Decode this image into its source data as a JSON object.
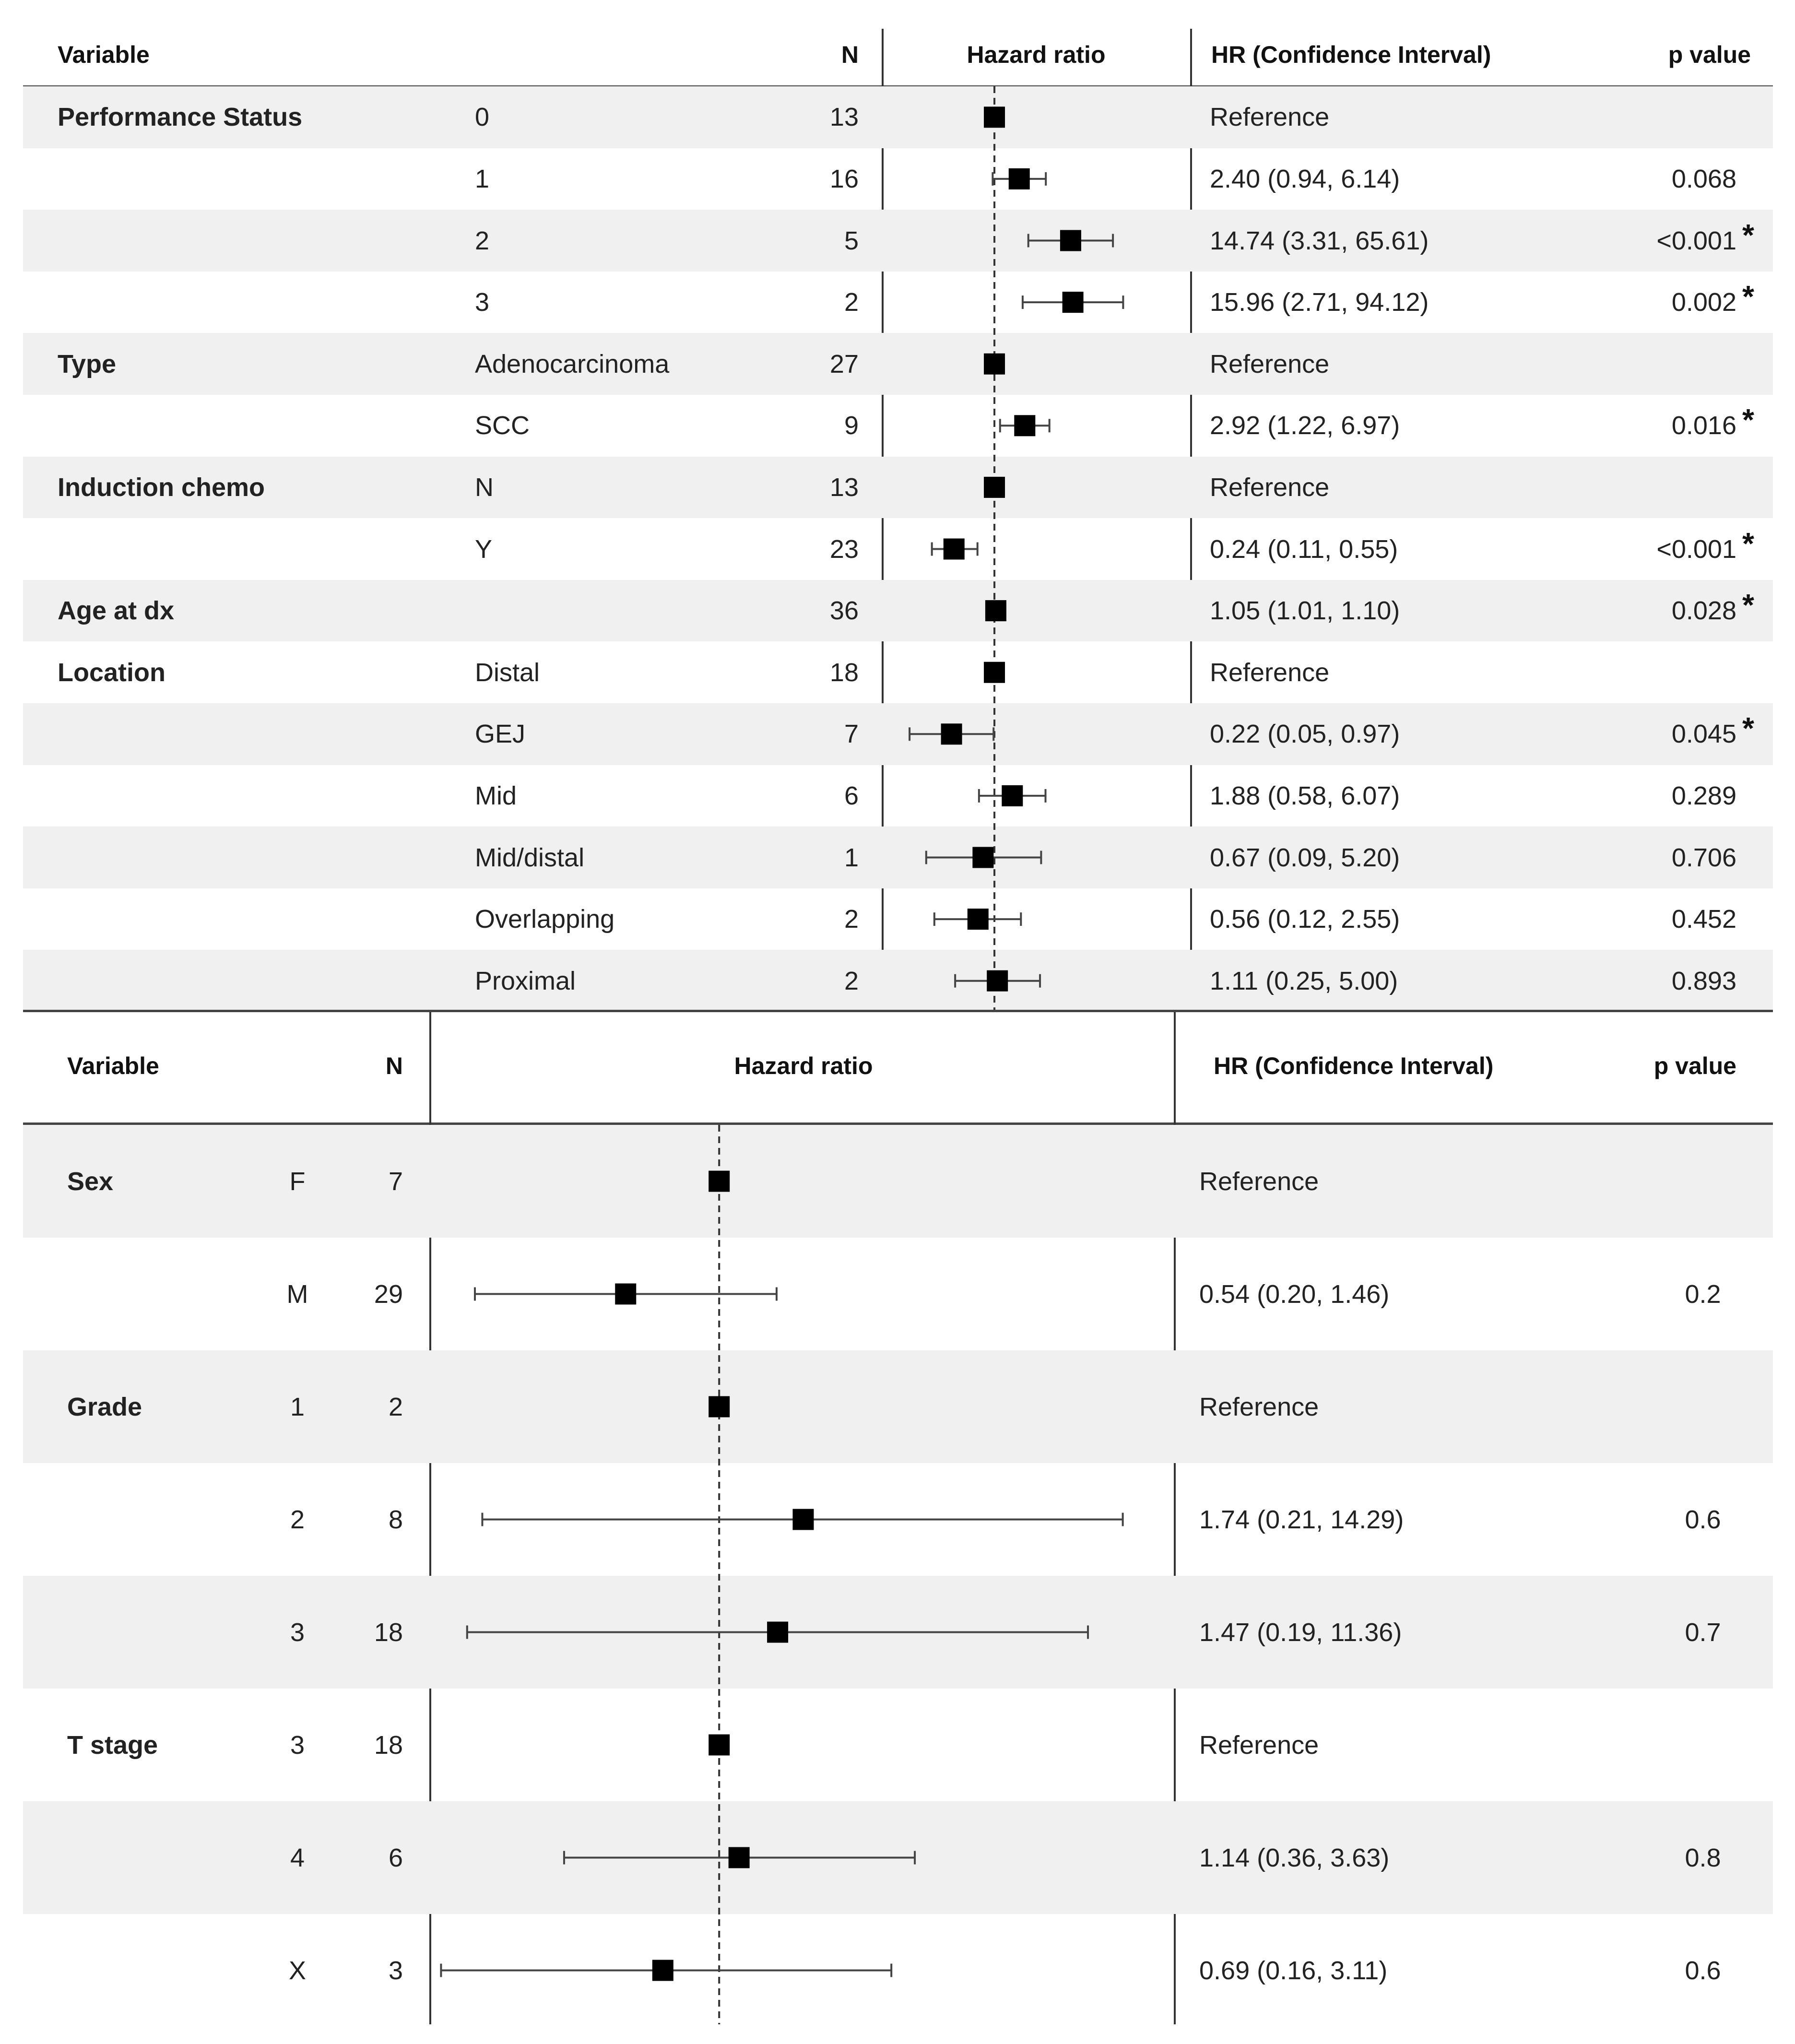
{
  "chart_data": [
    {
      "type": "forest",
      "headers": {
        "variable": "Variable",
        "n": "N",
        "plot": "Hazard ratio",
        "hr": "HR (Confidence Interval)",
        "p": "p value"
      },
      "xlim": [
        0.02,
        1000
      ],
      "scale": "log",
      "reference_line": 1,
      "rows": [
        {
          "variable": "Performance   Status",
          "level": "0",
          "n": "13",
          "hr": 1,
          "hr_text": "Reference",
          "p": "",
          "sig": false
        },
        {
          "variable": "",
          "level": "1",
          "n": "16",
          "hr": 2.4,
          "lo": 0.94,
          "hi": 6.14,
          "hr_text": "2.40 (0.94, 6.14)",
          "p": "0.068",
          "sig": false
        },
        {
          "variable": "",
          "level": "2",
          "n": "5",
          "hr": 14.74,
          "lo": 3.31,
          "hi": 65.61,
          "hr_text": "14.74 (3.31, 65.61)",
          "p": "<0.001",
          "sig": true
        },
        {
          "variable": "",
          "level": "3",
          "n": "2",
          "hr": 15.96,
          "lo": 2.71,
          "hi": 94.12,
          "hr_text": "15.96 (2.71, 94.12)",
          "p": "0.002",
          "sig": true
        },
        {
          "variable": "Type",
          "level": "Adenocarcinoma",
          "n": "27",
          "hr": 1,
          "hr_text": "Reference",
          "p": "",
          "sig": false
        },
        {
          "variable": "",
          "level": "SCC",
          "n": "9",
          "hr": 2.92,
          "lo": 1.22,
          "hi": 6.97,
          "hr_text": "2.92 (1.22, 6.97)",
          "p": "0.016",
          "sig": true
        },
        {
          "variable": "Induction chemo",
          "level": "N",
          "n": "13",
          "hr": 1,
          "hr_text": "Reference",
          "p": "",
          "sig": false
        },
        {
          "variable": "",
          "level": "Y",
          "n": "23",
          "hr": 0.24,
          "lo": 0.11,
          "hi": 0.55,
          "hr_text": "0.24 (0.11, 0.55)",
          "p": "<0.001",
          "sig": true
        },
        {
          "variable": "Age at dx",
          "level": "",
          "n": "36",
          "hr": 1.05,
          "lo": 1.01,
          "hi": 1.1,
          "hr_text": "1.05 (1.01, 1.10)",
          "p": "0.028",
          "sig": true
        },
        {
          "variable": "Location",
          "level": "Distal",
          "n": "18",
          "hr": 1,
          "hr_text": "Reference",
          "p": "",
          "sig": false
        },
        {
          "variable": "",
          "level": "GEJ",
          "n": "7",
          "hr": 0.22,
          "lo": 0.05,
          "hi": 0.97,
          "hr_text": "0.22 (0.05, 0.97)",
          "p": "0.045",
          "sig": true
        },
        {
          "variable": "",
          "level": "Mid",
          "n": "6",
          "hr": 1.88,
          "lo": 0.58,
          "hi": 6.07,
          "hr_text": "1.88 (0.58, 6.07)",
          "p": "0.289",
          "sig": false
        },
        {
          "variable": "",
          "level": "Mid/distal",
          "n": "1",
          "hr": 0.67,
          "lo": 0.09,
          "hi": 5.2,
          "hr_text": "0.67 (0.09, 5.20)",
          "p": "0.706",
          "sig": false
        },
        {
          "variable": "",
          "level": "Overlapping",
          "n": "2",
          "hr": 0.56,
          "lo": 0.12,
          "hi": 2.55,
          "hr_text": "0.56 (0.12, 2.55)",
          "p": "0.452",
          "sig": false
        },
        {
          "variable": "",
          "level": "Proximal",
          "n": "2",
          "hr": 1.11,
          "lo": 0.25,
          "hi": 5.0,
          "hr_text": "1.11 (0.25, 5.00)",
          "p": "0.893",
          "sig": false
        }
      ]
    },
    {
      "type": "forest",
      "headers": {
        "variable": "Variable",
        "n": "N",
        "plot": "Hazard ratio",
        "hr": "HR (Confidence Interval)",
        "p": "p value"
      },
      "xlim": [
        0.15,
        20
      ],
      "scale": "log",
      "reference_line": 1,
      "rows": [
        {
          "variable": "Sex",
          "level": "F",
          "n": "7",
          "hr": 1,
          "hr_text": "Reference",
          "p": ""
        },
        {
          "variable": "",
          "level": "M",
          "n": "29",
          "hr": 0.54,
          "lo": 0.2,
          "hi": 1.46,
          "hr_text": "0.54 (0.20, 1.46)",
          "p": "0.2"
        },
        {
          "variable": "Grade",
          "level": "1",
          "n": "2",
          "hr": 1,
          "hr_text": "Reference",
          "p": ""
        },
        {
          "variable": "",
          "level": "2",
          "n": "8",
          "hr": 1.74,
          "lo": 0.21,
          "hi": 14.29,
          "hr_text": "1.74 (0.21, 14.29)",
          "p": "0.6"
        },
        {
          "variable": "",
          "level": "3",
          "n": "18",
          "hr": 1.47,
          "lo": 0.19,
          "hi": 11.36,
          "hr_text": "1.47 (0.19, 11.36)",
          "p": "0.7"
        },
        {
          "variable": "T stage",
          "level": "3",
          "n": "18",
          "hr": 1,
          "hr_text": "Reference",
          "p": ""
        },
        {
          "variable": "",
          "level": "4",
          "n": "6",
          "hr": 1.14,
          "lo": 0.36,
          "hi": 3.63,
          "hr_text": "1.14 (0.36, 3.63)",
          "p": "0.8"
        },
        {
          "variable": "",
          "level": "X",
          "n": "3",
          "hr": 0.69,
          "lo": 0.16,
          "hi": 3.11,
          "hr_text": "0.69 (0.16, 3.11)",
          "p": "0.6"
        }
      ]
    }
  ]
}
